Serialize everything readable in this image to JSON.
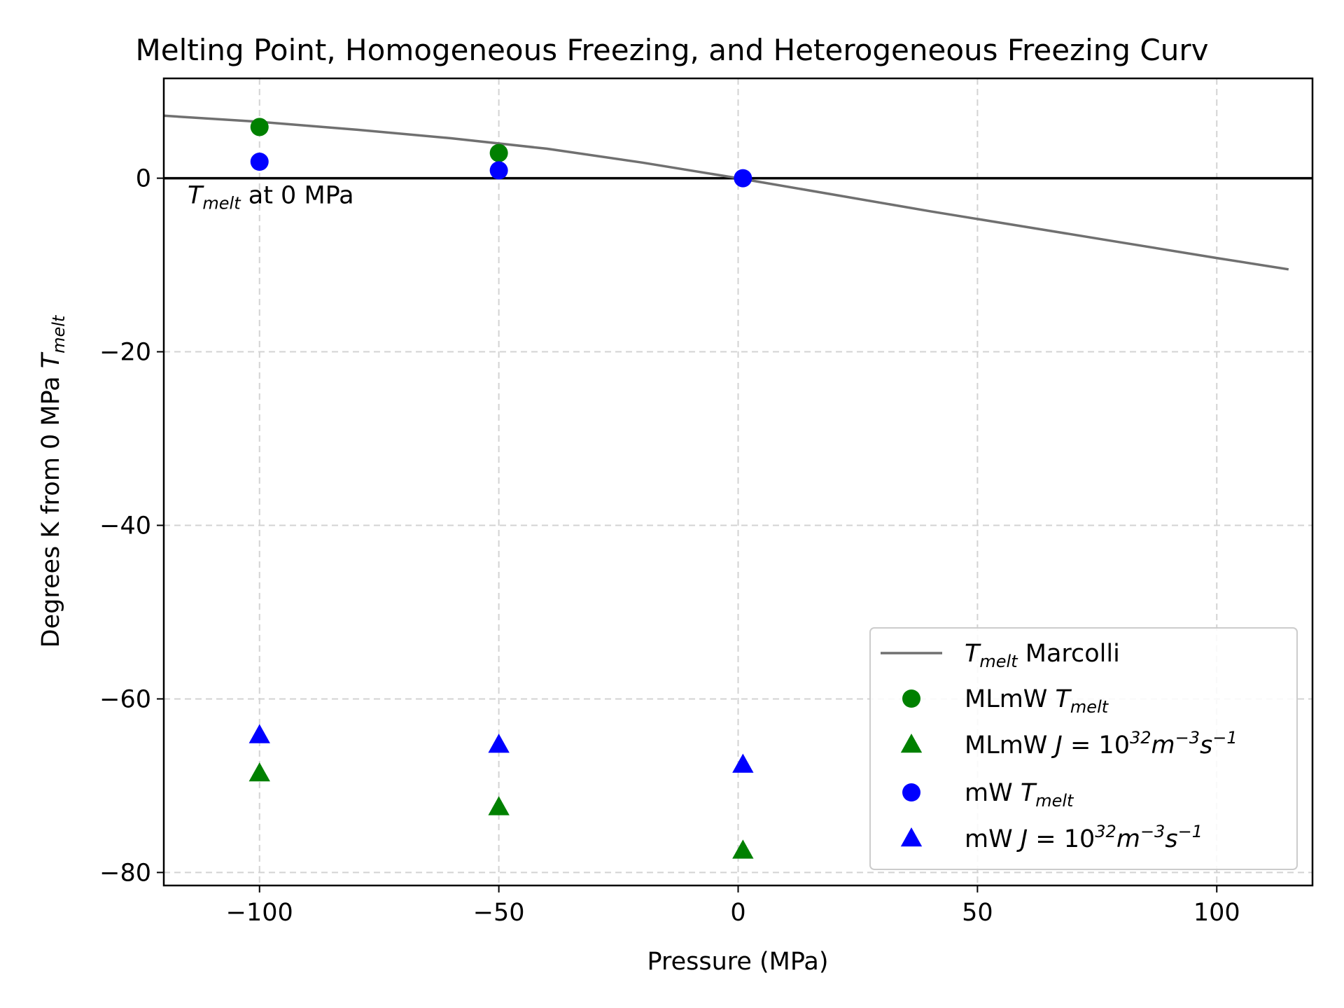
{
  "chart_data": {
    "type": "scatter",
    "title": "Melting Point, Homogeneous Freezing, and Heterogeneous Freezing Curv",
    "xlabel": "Pressure (MPa)",
    "ylabel": {
      "main": "Degrees K from 0 MPa ",
      "sym": "T",
      "sub": "melt"
    },
    "xlim": [
      -120,
      120
    ],
    "ylim": [
      -81.5,
      11.5
    ],
    "xticks": [
      -100,
      -50,
      0,
      50,
      100
    ],
    "xtick_labels": [
      "−100",
      "−50",
      "0",
      "50",
      "100"
    ],
    "yticks": [
      0,
      -20,
      -40,
      -60,
      -80
    ],
    "ytick_labels": [
      "0",
      "−20",
      "−40",
      "−60",
      "−80"
    ],
    "grid": true,
    "legend_position": "lower-right",
    "reference_line": {
      "y": 0,
      "color": "#000000",
      "label": {
        "sym": "T",
        "sub": "melt",
        "rest": " at 0 MPa"
      }
    },
    "series": [
      {
        "name": {
          "sym": "T",
          "sub": "melt",
          "rest": " Marcolli"
        },
        "kind": "line",
        "color": "#707070",
        "x": [
          -120,
          -100,
          -80,
          -60,
          -40,
          -20,
          0,
          20,
          40,
          60,
          80,
          100,
          115
        ],
        "y": [
          7.2,
          6.5,
          5.6,
          4.6,
          3.4,
          1.8,
          0.0,
          -1.9,
          -3.8,
          -5.6,
          -7.4,
          -9.2,
          -10.5
        ]
      },
      {
        "name": {
          "pre": "MLmW ",
          "sym": "T",
          "sub": "melt"
        },
        "kind": "circle",
        "color": "#008000",
        "x": [
          -100,
          -50
        ],
        "y": [
          5.9,
          2.9
        ]
      },
      {
        "name": {
          "pre": "MLmW ",
          "j": true
        },
        "kind": "triangle",
        "color": "#008000",
        "x": [
          -100,
          -50,
          1
        ],
        "y": [
          -68.6,
          -72.5,
          -77.5
        ]
      },
      {
        "name": {
          "pre": "mW ",
          "sym": "T",
          "sub": "melt"
        },
        "kind": "circle",
        "color": "#0000ff",
        "x": [
          -100,
          -50,
          1
        ],
        "y": [
          1.9,
          0.9,
          0.0
        ]
      },
      {
        "name": {
          "pre": "mW ",
          "j": true
        },
        "kind": "triangle",
        "color": "#0000ff",
        "x": [
          -100,
          -50,
          1
        ],
        "y": [
          -64.2,
          -65.3,
          -67.6
        ]
      }
    ]
  }
}
